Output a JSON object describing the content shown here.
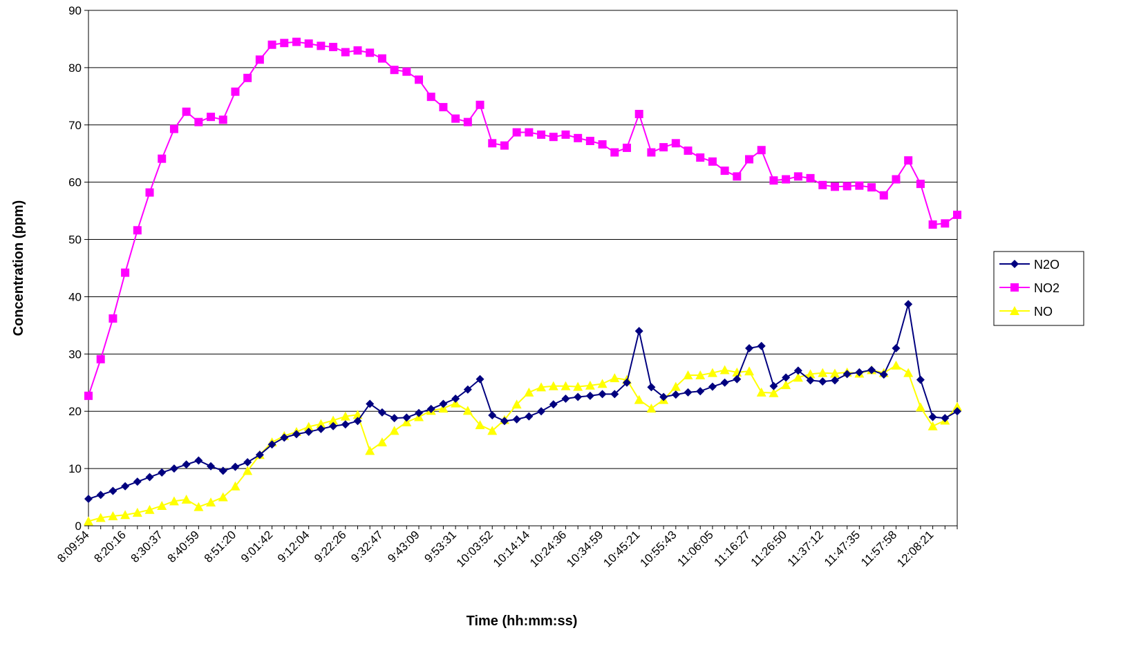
{
  "chart_data": {
    "type": "line",
    "title": "",
    "xlabel": "Time (hh:mm:ss)",
    "ylabel": "Concentration (ppm)",
    "ylim": [
      0,
      90
    ],
    "yticks": [
      0,
      10,
      20,
      30,
      40,
      50,
      60,
      70,
      80,
      90
    ],
    "grid": "horizontal",
    "legend_position": "right",
    "x_tick_labels": [
      "8:09:54",
      "8:20:16",
      "8:30:37",
      "8:40:59",
      "8:51:20",
      "9:01:42",
      "9:12:04",
      "9:22:26",
      "9:32:47",
      "9:43:09",
      "9:53:31",
      "10:03:52",
      "10:14:14",
      "10:24:36",
      "10:34:59",
      "10:45:21",
      "10:55:43",
      "11:06:05",
      "11:16:27",
      "11:26:50",
      "11:37:12",
      "11:47:35",
      "11:57:58",
      "12:08:21"
    ],
    "x_tick_every": 3,
    "series": [
      {
        "name": "N2O",
        "color": "#00007F",
        "marker": "diamond",
        "values": [
          4.7,
          5.4,
          6.1,
          6.9,
          7.7,
          8.5,
          9.3,
          10.0,
          10.7,
          11.4,
          10.4,
          9.6,
          10.3,
          11.1,
          12.4,
          14.2,
          15.4,
          16.0,
          16.4,
          16.9,
          17.4,
          17.7,
          18.3,
          21.3,
          19.8,
          18.8,
          18.9,
          19.7,
          20.4,
          21.3,
          22.2,
          23.8,
          25.6,
          19.3,
          18.3,
          18.6,
          19.1,
          20.0,
          21.2,
          22.2,
          22.5,
          22.7,
          23.0,
          23.0,
          25.0,
          34.0,
          24.2,
          22.5,
          22.9,
          23.3,
          23.5,
          24.3,
          25.0,
          25.6,
          31.0,
          31.4,
          24.4,
          25.9,
          27.1,
          25.4,
          25.2,
          25.4,
          26.5,
          26.8,
          27.2,
          26.4,
          31.0,
          38.7,
          25.5,
          19.0,
          18.8,
          20.0
        ]
      },
      {
        "name": "NO2",
        "color": "#FF00FF",
        "marker": "square",
        "values": [
          22.7,
          29.1,
          36.2,
          44.2,
          51.6,
          58.2,
          64.1,
          69.3,
          72.3,
          70.5,
          71.4,
          70.9,
          75.8,
          78.2,
          81.4,
          84.0,
          84.3,
          84.5,
          84.2,
          83.8,
          83.6,
          82.7,
          83.0,
          82.6,
          81.6,
          79.6,
          79.3,
          77.9,
          74.9,
          73.1,
          71.1,
          70.5,
          73.5,
          66.8,
          66.4,
          68.7,
          68.7,
          68.3,
          67.9,
          68.3,
          67.7,
          67.2,
          66.6,
          65.2,
          66.0,
          71.9,
          65.2,
          66.1,
          66.8,
          65.5,
          64.3,
          63.6,
          62.0,
          61.0,
          64.0,
          65.6,
          60.3,
          60.5,
          61.0,
          60.7,
          59.5,
          59.2,
          59.3,
          59.4,
          59.1,
          57.7,
          60.5,
          63.8,
          59.7,
          52.6,
          52.8,
          54.3
        ]
      },
      {
        "name": "NO",
        "color": "#FFFF00",
        "marker": "triangle",
        "values": [
          0.8,
          1.4,
          1.7,
          1.9,
          2.3,
          2.8,
          3.5,
          4.3,
          4.6,
          3.3,
          4.1,
          5.0,
          6.9,
          9.6,
          12.4,
          14.6,
          15.7,
          16.4,
          17.3,
          17.8,
          18.4,
          19.1,
          19.4,
          13.1,
          14.6,
          16.6,
          18.1,
          19.0,
          20.1,
          20.5,
          21.4,
          20.1,
          17.6,
          16.6,
          18.5,
          21.2,
          23.3,
          24.2,
          24.4,
          24.4,
          24.3,
          24.5,
          24.8,
          25.8,
          25.5,
          22.0,
          20.5,
          22.0,
          24.3,
          26.3,
          26.3,
          26.7,
          27.2,
          26.8,
          27.0,
          23.3,
          23.2,
          24.6,
          25.9,
          26.5,
          26.7,
          26.6,
          26.8,
          26.6,
          27.2,
          26.7,
          28.0,
          26.7,
          20.7,
          17.4,
          18.4,
          20.8
        ]
      }
    ]
  }
}
